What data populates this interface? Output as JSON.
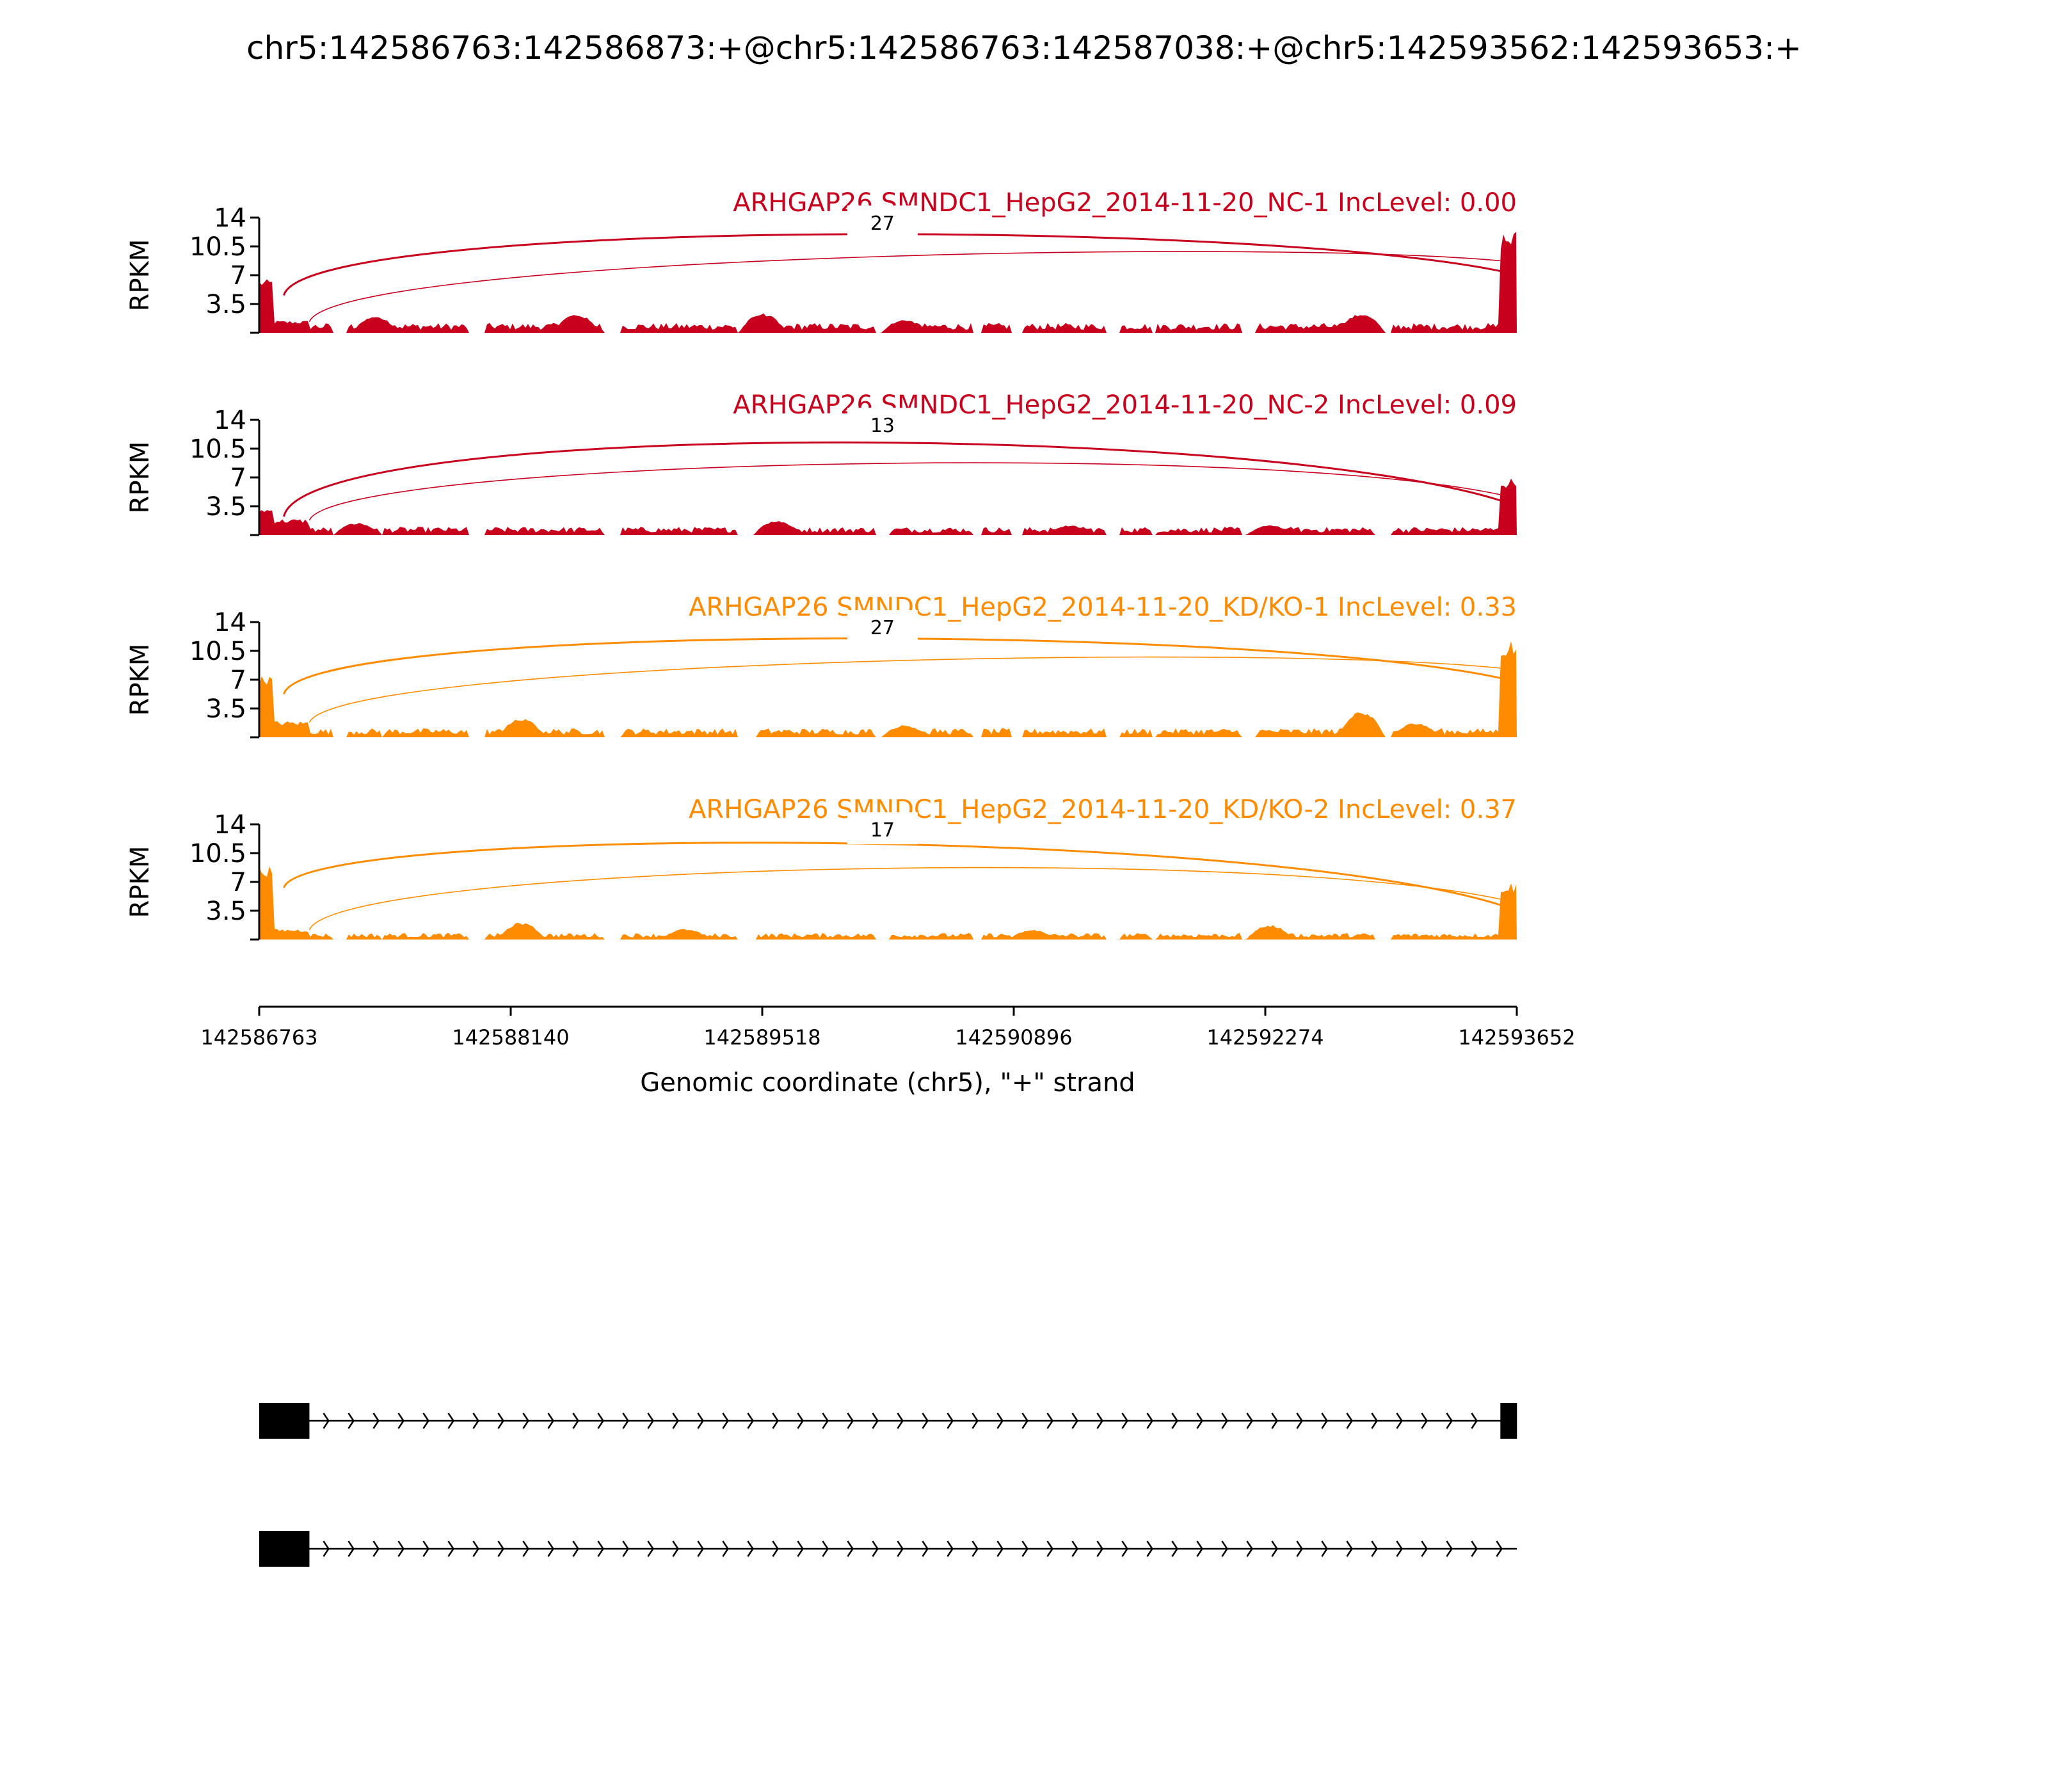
{
  "chart_data": {
    "type": "sashimi",
    "title": "chr5:142586763:142586873:+@chr5:142586763:142587038:+@chr5:142593562:142593653:+",
    "ylabel": "RPKM",
    "xlabel": "Genomic coordinate (chr5), \"+\" strand",
    "x_ticks": [
      "142586763",
      "142588140",
      "142589518",
      "142590896",
      "142592274",
      "142593652"
    ],
    "xlim": [
      142586763,
      142593652
    ],
    "ylim": [
      0,
      14
    ],
    "y_ticks": [
      "14",
      "10.5",
      "7",
      "3.5"
    ],
    "panels": [
      {
        "label": "ARHGAP26 SMNDC1_HepG2_2014-11-20_NC-1 IncLevel: 0.00",
        "color": "#c8001e",
        "junction_label": "27",
        "left_exon_height": 6.5,
        "mid_exon_height": 1.5,
        "right_exon_height": 12.5,
        "background_level": 1.2,
        "bumps": [
          [
            142587400,
            2.0
          ],
          [
            142588500,
            2.3
          ],
          [
            142589520,
            2.4
          ],
          [
            142592800,
            2.4
          ],
          [
            142590300,
            1.6
          ]
        ]
      },
      {
        "label": "ARHGAP26 SMNDC1_HepG2_2014-11-20_NC-2 IncLevel: 0.09",
        "color": "#c8001e",
        "junction_label": "13",
        "left_exon_height": 3.2,
        "mid_exon_height": 2.0,
        "right_exon_height": 7.0,
        "background_level": 1.0,
        "bumps": [
          [
            142587300,
            1.5
          ],
          [
            142589600,
            1.8
          ],
          [
            142591200,
            1.2
          ],
          [
            142592300,
            1.2
          ]
        ]
      },
      {
        "label": "ARHGAP26 SMNDC1_HepG2_2014-11-20_KD/KO-1 IncLevel: 0.33",
        "color": "#ff8c00",
        "junction_label": "27",
        "left_exon_height": 7.5,
        "mid_exon_height": 2.0,
        "right_exon_height": 12.0,
        "background_level": 1.1,
        "bumps": [
          [
            142588200,
            2.3
          ],
          [
            142590300,
            1.5
          ],
          [
            142592800,
            3.2
          ],
          [
            142593100,
            1.8
          ]
        ]
      },
      {
        "label": "ARHGAP26 SMNDC1_HepG2_2014-11-20_KD/KO-2 IncLevel: 0.37",
        "color": "#ff8c00",
        "junction_label": "17",
        "left_exon_height": 9.0,
        "mid_exon_height": 1.3,
        "right_exon_height": 7.0,
        "background_level": 0.8,
        "bumps": [
          [
            142588200,
            2.1
          ],
          [
            142589100,
            1.3
          ],
          [
            142591000,
            1.2
          ],
          [
            142592300,
            1.8
          ]
        ]
      }
    ],
    "exons": {
      "upstream": [
        142586763,
        142587038
      ],
      "downstream": [
        142593562,
        142593653
      ]
    },
    "isoforms": [
      {
        "exons": [
          [
            142586763,
            142587038
          ],
          [
            142593562,
            142593653
          ]
        ]
      },
      {
        "exons": [
          [
            142586763,
            142587038
          ]
        ]
      }
    ]
  }
}
